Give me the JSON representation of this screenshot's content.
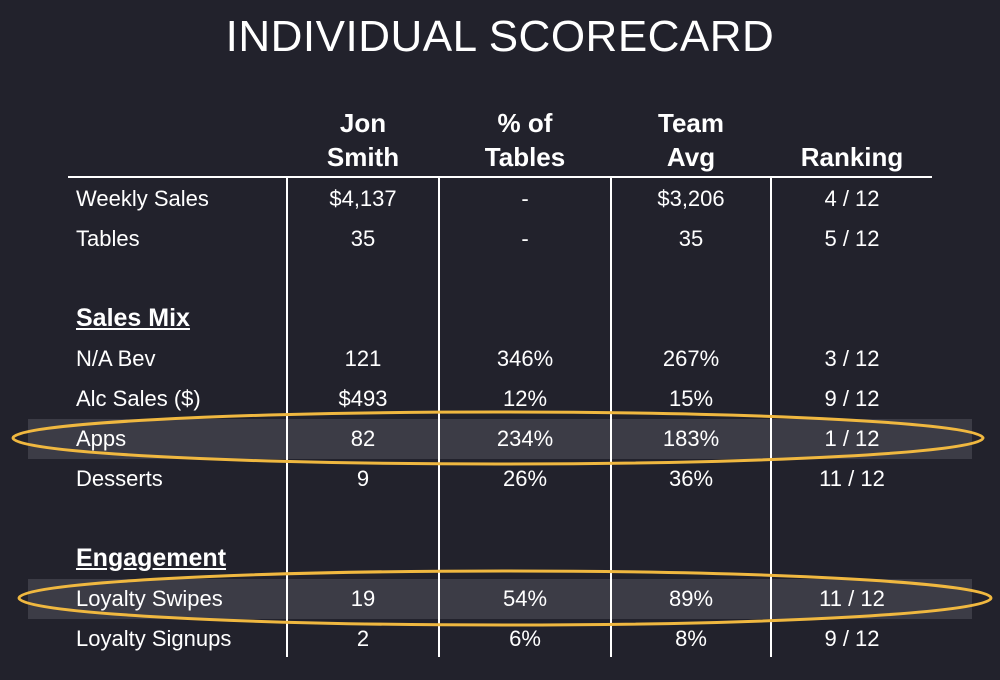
{
  "title": "INDIVIDUAL SCORECARD",
  "headers": {
    "person": [
      "Jon",
      "Smith"
    ],
    "pct": [
      "% of",
      "Tables"
    ],
    "team": [
      "Team",
      "Avg"
    ],
    "rank": "Ranking"
  },
  "rows": {
    "weekly_sales": {
      "label": "Weekly Sales",
      "person": "$4,137",
      "pct": "-",
      "team": "$3,206",
      "rank": "4 / 12"
    },
    "tables": {
      "label": "Tables",
      "person": "35",
      "pct": "-",
      "team": "35",
      "rank": "5 / 12"
    },
    "na_bev": {
      "label": "N/A Bev",
      "person": "121",
      "pct": "346%",
      "team": "267%",
      "rank": "3 / 12"
    },
    "alc_sales": {
      "label": "Alc Sales ($)",
      "person": "$493",
      "pct": "12%",
      "team": "15%",
      "rank": "9 / 12"
    },
    "apps": {
      "label": "Apps",
      "person": "82",
      "pct": "234%",
      "team": "183%",
      "rank": "1 / 12"
    },
    "desserts": {
      "label": "Desserts",
      "person": "9",
      "pct": "26%",
      "team": "36%",
      "rank": "11 / 12"
    },
    "loyalty_swipes": {
      "label": "Loyalty Swipes",
      "person": "19",
      "pct": "54%",
      "team": "89%",
      "rank": "11 / 12"
    },
    "loyalty_signups": {
      "label": "Loyalty Signups",
      "person": "2",
      "pct": "6%",
      "team": "8%",
      "rank": "9 / 12"
    }
  },
  "sections": {
    "sales_mix": "Sales Mix",
    "engagement": "Engagement"
  },
  "colors": {
    "background": "#22222c",
    "highlight_ring": "#f0b840",
    "highlight_band": "#3c3c46"
  }
}
